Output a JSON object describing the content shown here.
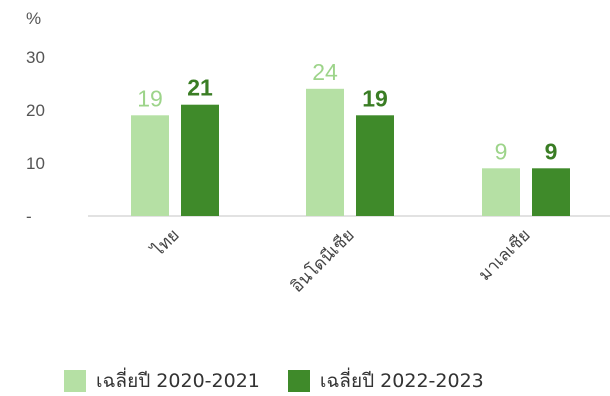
{
  "chart_data": {
    "type": "bar",
    "unit_label": "%",
    "categories": [
      "ไทย",
      "อินโดนีเซีย",
      "มาเลเซีย"
    ],
    "ylim": [
      0,
      30
    ],
    "yticks": [
      {
        "value": 0,
        "label": "-"
      },
      {
        "value": 10,
        "label": "10"
      },
      {
        "value": 20,
        "label": "20"
      },
      {
        "value": 30,
        "label": "30"
      }
    ],
    "series": [
      {
        "name": "เฉลี่ยปี 2020-2021",
        "color": "#b5e0a4",
        "label_color": "#9dd48a",
        "values": [
          19,
          24,
          9
        ],
        "labels": [
          "19",
          "24",
          "9"
        ]
      },
      {
        "name": "เฉลี่ยปี 2022-2023",
        "color": "#3f8a2a",
        "label_color": "#3a7d24",
        "values": [
          21,
          19,
          9
        ],
        "labels": [
          "21",
          "19",
          "9"
        ]
      }
    ],
    "grid": false,
    "legend_position": "bottom"
  }
}
